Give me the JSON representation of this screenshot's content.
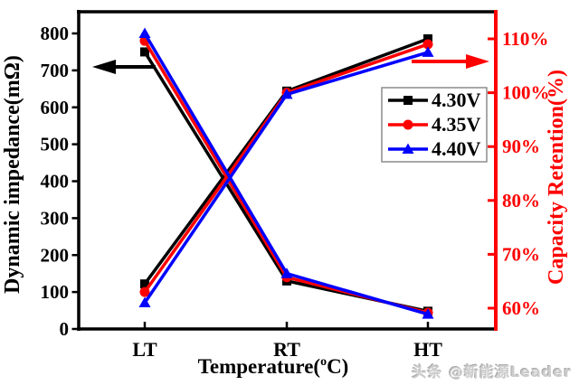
{
  "figure": {
    "background": "#ffffff",
    "watermark": "头条 @新能源Leader"
  },
  "chart_data": {
    "type": "line",
    "dual_axis": true,
    "grid": false,
    "categories": [
      "LT",
      "RT",
      "HT"
    ],
    "x_axis": {
      "label": "Temperature(°C)",
      "title_prefix": "Temperature(",
      "title_sup": "o",
      "title_suffix": "C)"
    },
    "left_axis": {
      "title": "Dynamic impedance(mΩ)",
      "color": "#000000",
      "ticks": [
        0,
        100,
        200,
        300,
        400,
        500,
        600,
        700,
        800
      ],
      "range": [
        0,
        858
      ]
    },
    "right_axis": {
      "title": "Capacity Retention(%)",
      "color": "#ff0000",
      "tick_values": [
        60,
        70,
        80,
        90,
        100,
        110
      ],
      "tick_labels": [
        "60%",
        "70%",
        "80%",
        "90%",
        "100%",
        "110%"
      ],
      "range": [
        56,
        115
      ]
    },
    "series": [
      {
        "name": "4.30V",
        "color": "#000000",
        "marker": "square",
        "impedance_mohm": [
          750,
          130,
          48
        ],
        "retention_pct": [
          64.5,
          100.3,
          110
        ]
      },
      {
        "name": "4.35V",
        "color": "#ff0000",
        "marker": "circle",
        "impedance_mohm": [
          780,
          140,
          44
        ],
        "retention_pct": [
          63,
          100,
          109
        ]
      },
      {
        "name": "4.40V",
        "color": "#0000ff",
        "marker": "triangle",
        "impedance_mohm": [
          800,
          150,
          40
        ],
        "retention_pct": [
          61,
          99.7,
          107.5
        ]
      }
    ],
    "legend": {
      "entries": [
        "4.30V",
        "4.35V",
        "4.40V"
      ],
      "position": "middle-right",
      "border_color": "#8c8c8c"
    },
    "annotations": {
      "impedance_arrow": {
        "direction": "left",
        "color": "#000000"
      },
      "retention_arrow": {
        "direction": "right",
        "color": "#ff0000"
      }
    }
  }
}
